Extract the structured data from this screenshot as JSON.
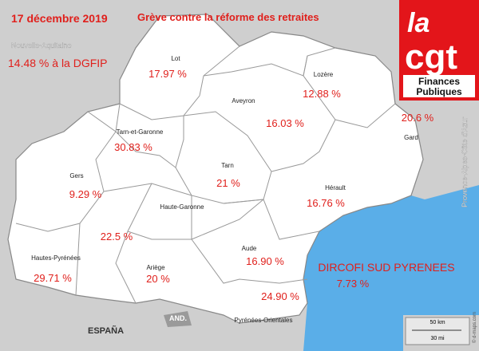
{
  "header": {
    "date": "17 décembre 2019",
    "title": "Grève contre la réforme des retraites",
    "neighbor": "Nouvelle-Aquitaine",
    "dgfip": "14.48 % à la DGFIP"
  },
  "logo": {
    "top": "la",
    "main": "cgt",
    "line1": "Finances",
    "line2": "Publiques"
  },
  "regions": [
    {
      "name": "Lot",
      "rate": "17.97 %"
    },
    {
      "name": "Lozère",
      "rate": "12.88 %"
    },
    {
      "name": "Aveyron",
      "rate": "16.03 %"
    },
    {
      "name": "Gard",
      "rate": "20.6 %"
    },
    {
      "name": "Tarn-et-Garonne",
      "rate": "30.83 %"
    },
    {
      "name": "Tarn",
      "rate": "21 %"
    },
    {
      "name": "Gers",
      "rate": "9.29 %"
    },
    {
      "name": "Hérault",
      "rate": "16.76 %"
    },
    {
      "name": "Haute-Garonne",
      "rate": "22.5 %"
    },
    {
      "name": "Hautes-Pyrénées",
      "rate": "29.71 %"
    },
    {
      "name": "Ariège",
      "rate": "20 %"
    },
    {
      "name": "Aude",
      "rate": "16.90 %"
    },
    {
      "name": "Pyrénées-Orientales",
      "rate": "24.90 %"
    }
  ],
  "dircofi": {
    "name": "DIRCOFI SUD PYRENEES",
    "rate": "7.73 %"
  },
  "labels": {
    "spain": "ESPAÑA",
    "andorra": "AND.",
    "paca": "Provence-Alpes-Côte d'Azur",
    "scale_km": "50 km",
    "scale_mi": "30 mi",
    "credit": "© d-maps.com"
  }
}
